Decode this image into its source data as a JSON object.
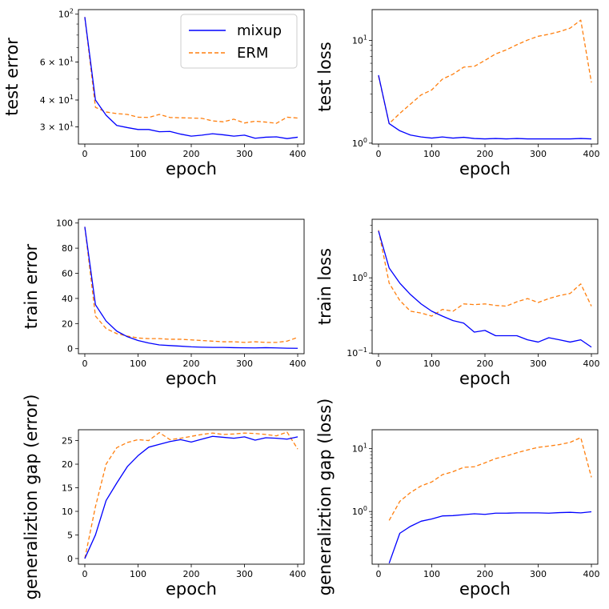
{
  "colors": {
    "mixup": "#0000ff",
    "erm": "#ff7f0e"
  },
  "legend": {
    "placement": "upper-right of first panel",
    "entries": [
      "mixup",
      "ERM"
    ]
  },
  "chart_data": [
    {
      "id": "test-error",
      "type": "line",
      "xlabel": "epoch",
      "ylabel": "test error",
      "yscale": "log",
      "xlim": [
        -12,
        412
      ],
      "ylim": [
        25,
        105
      ],
      "xticks": [
        0,
        100,
        200,
        300,
        400
      ],
      "yticks": [
        {
          "value": 100,
          "mant": "10",
          "sup": "2"
        },
        {
          "value": 60,
          "mant": "6 × 10",
          "sup": "1"
        },
        {
          "value": 40,
          "mant": "4 × 10",
          "sup": "1"
        },
        {
          "value": 30,
          "mant": "3 × 10",
          "sup": "1"
        }
      ],
      "x": [
        0,
        20,
        40,
        60,
        80,
        100,
        120,
        140,
        160,
        180,
        200,
        220,
        240,
        260,
        280,
        300,
        320,
        340,
        360,
        380,
        400
      ],
      "series": [
        {
          "name": "mixup",
          "style": "solid",
          "values": [
            97,
            40,
            34,
            30.5,
            29.8,
            29.2,
            29.2,
            28.5,
            28.6,
            27.8,
            27.2,
            27.5,
            27.9,
            27.6,
            27.2,
            27.5,
            26.6,
            26.9,
            27.0,
            26.5,
            26.9
          ]
        },
        {
          "name": "ERM",
          "style": "dashed",
          "values": [
            97,
            37,
            35.2,
            34.6,
            34.3,
            33.3,
            33.2,
            34.3,
            33.2,
            33.1,
            33.0,
            32.9,
            32.0,
            31.7,
            32.6,
            31.3,
            31.9,
            31.6,
            31.2,
            33.3,
            33.0
          ]
        }
      ]
    },
    {
      "id": "test-loss",
      "type": "line",
      "xlabel": "epoch",
      "ylabel": "test loss",
      "yscale": "log",
      "xlim": [
        -12,
        412
      ],
      "ylim": [
        0.98,
        20
      ],
      "xticks": [
        0,
        100,
        200,
        300,
        400
      ],
      "yticks": [
        {
          "value": 1,
          "mant": "10",
          "sup": "0"
        },
        {
          "value": 10,
          "mant": "10",
          "sup": "1"
        }
      ],
      "x": [
        0,
        20,
        40,
        60,
        80,
        100,
        120,
        140,
        160,
        180,
        200,
        220,
        240,
        260,
        280,
        300,
        320,
        340,
        360,
        380,
        400
      ],
      "series": [
        {
          "name": "mixup",
          "style": "solid",
          "values": [
            4.6,
            1.55,
            1.32,
            1.2,
            1.15,
            1.12,
            1.15,
            1.12,
            1.14,
            1.11,
            1.1,
            1.11,
            1.1,
            1.11,
            1.1,
            1.1,
            1.1,
            1.1,
            1.1,
            1.11,
            1.1
          ]
        },
        {
          "name": "ERM",
          "style": "dashed",
          "values": [
            4.5,
            1.55,
            1.95,
            2.4,
            2.95,
            3.3,
            4.2,
            4.7,
            5.5,
            5.6,
            6.4,
            7.4,
            8.1,
            9.1,
            10.1,
            11.0,
            11.5,
            12.2,
            13.2,
            15.8,
            3.9
          ]
        }
      ]
    },
    {
      "id": "train-error",
      "type": "line",
      "xlabel": "epoch",
      "ylabel": "train error",
      "yscale": "linear",
      "xlim": [
        -12,
        412
      ],
      "ylim": [
        -4,
        103
      ],
      "xticks": [
        0,
        100,
        200,
        300,
        400
      ],
      "yticks": [
        0,
        20,
        40,
        60,
        80,
        100
      ],
      "x": [
        0,
        20,
        40,
        60,
        80,
        100,
        120,
        140,
        160,
        180,
        200,
        220,
        240,
        260,
        280,
        300,
        320,
        340,
        360,
        380,
        400
      ],
      "series": [
        {
          "name": "mixup",
          "style": "solid",
          "values": [
            97,
            35,
            22,
            14,
            9.5,
            6.5,
            4.5,
            3.0,
            2.5,
            2.0,
            1.5,
            1.2,
            1.0,
            1.0,
            0.8,
            0.7,
            0.6,
            0.8,
            0.6,
            0.4,
            0.3
          ]
        },
        {
          "name": "ERM",
          "style": "dashed",
          "values": [
            97,
            26,
            16,
            12,
            10,
            8.5,
            8.0,
            8.0,
            7.5,
            7.5,
            7.0,
            6.5,
            6.0,
            5.5,
            5.5,
            5.0,
            5.5,
            5.0,
            5.0,
            6.0,
            9.0
          ]
        }
      ]
    },
    {
      "id": "train-loss",
      "type": "line",
      "xlabel": "epoch",
      "ylabel": "train loss",
      "yscale": "log",
      "xlim": [
        -12,
        412
      ],
      "ylim": [
        0.098,
        6.0
      ],
      "xticks": [
        0,
        100,
        200,
        300,
        400
      ],
      "yticks": [
        {
          "value": 0.1,
          "mant": "10",
          "sup": "−1"
        },
        {
          "value": 1,
          "mant": "10",
          "sup": "0"
        }
      ],
      "x": [
        0,
        20,
        40,
        60,
        80,
        100,
        120,
        140,
        160,
        180,
        200,
        220,
        240,
        260,
        280,
        300,
        320,
        340,
        360,
        380,
        400
      ],
      "series": [
        {
          "name": "mixup",
          "style": "solid",
          "values": [
            4.2,
            1.35,
            0.85,
            0.6,
            0.45,
            0.36,
            0.31,
            0.27,
            0.25,
            0.19,
            0.2,
            0.17,
            0.17,
            0.17,
            0.15,
            0.14,
            0.16,
            0.15,
            0.14,
            0.15,
            0.12
          ]
        },
        {
          "name": "ERM",
          "style": "dashed",
          "values": [
            4.3,
            0.85,
            0.5,
            0.36,
            0.34,
            0.31,
            0.38,
            0.36,
            0.45,
            0.44,
            0.45,
            0.43,
            0.42,
            0.48,
            0.53,
            0.47,
            0.53,
            0.58,
            0.62,
            0.83,
            0.42
          ]
        }
      ]
    },
    {
      "id": "gen-gap-error",
      "type": "line",
      "xlabel": "epoch",
      "ylabel": "generaliztion gap (error)",
      "yscale": "linear",
      "xlim": [
        -12,
        412
      ],
      "ylim": [
        -1.2,
        27.3
      ],
      "xticks": [
        0,
        100,
        200,
        300,
        400
      ],
      "yticks": [
        0,
        5,
        10,
        15,
        20,
        25
      ],
      "x": [
        0,
        20,
        40,
        60,
        80,
        100,
        120,
        140,
        160,
        180,
        200,
        220,
        240,
        260,
        280,
        300,
        320,
        340,
        360,
        380,
        400
      ],
      "series": [
        {
          "name": "mixup",
          "style": "solid",
          "values": [
            0,
            5.0,
            12.3,
            16.0,
            19.5,
            21.8,
            23.6,
            24.2,
            24.8,
            25.2,
            24.7,
            25.3,
            25.9,
            25.7,
            25.5,
            25.8,
            25.1,
            25.6,
            25.5,
            25.3,
            25.8
          ]
        },
        {
          "name": "ERM",
          "style": "dashed",
          "values": [
            0,
            11.0,
            20.0,
            23.5,
            24.6,
            25.2,
            25.0,
            26.7,
            25.2,
            25.5,
            25.9,
            26.3,
            26.6,
            26.3,
            26.4,
            26.6,
            26.5,
            26.3,
            26.0,
            26.8,
            23.2
          ]
        }
      ]
    },
    {
      "id": "gen-gap-loss",
      "type": "line",
      "xlabel": "epoch",
      "ylabel": "generaliztion gap (loss)",
      "yscale": "log",
      "xlim": [
        -12,
        412
      ],
      "ylim": [
        0.145,
        20
      ],
      "xticks": [
        0,
        100,
        200,
        300,
        400
      ],
      "yticks": [
        {
          "value": 1,
          "mant": "10",
          "sup": "0"
        },
        {
          "value": 10,
          "mant": "10",
          "sup": "1"
        }
      ],
      "x": [
        20,
        40,
        60,
        80,
        100,
        120,
        140,
        160,
        180,
        200,
        220,
        240,
        260,
        280,
        300,
        320,
        340,
        360,
        380,
        400
      ],
      "series": [
        {
          "name": "mixup",
          "style": "solid",
          "values": [
            0.15,
            0.45,
            0.58,
            0.7,
            0.76,
            0.85,
            0.86,
            0.89,
            0.92,
            0.9,
            0.94,
            0.94,
            0.95,
            0.95,
            0.95,
            0.94,
            0.96,
            0.97,
            0.95,
            0.99
          ]
        },
        {
          "name": "ERM",
          "style": "dashed",
          "values": [
            0.72,
            1.45,
            2.0,
            2.55,
            2.95,
            3.85,
            4.3,
            5.05,
            5.15,
            5.95,
            6.95,
            7.65,
            8.6,
            9.55,
            10.5,
            11.0,
            11.6,
            12.6,
            15.0,
            3.5
          ]
        }
      ]
    }
  ]
}
